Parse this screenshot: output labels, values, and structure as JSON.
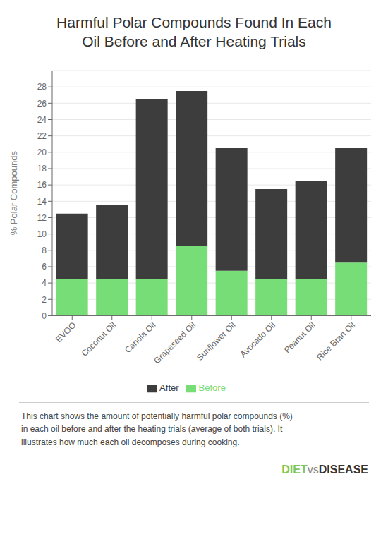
{
  "chart_data": {
    "type": "bar",
    "title": "Harmful Polar Compounds Found In Each\nOil Before and After Heating Trials",
    "categories": [
      "EVOO",
      "Coconut Oil",
      "Canola Oil",
      "Grapeseed Oil",
      "Sunflower Oil",
      "Avocado Oil",
      "Peanut Oil",
      "Rice Bran Oil"
    ],
    "series": [
      {
        "name": "Before",
        "color": "#77dd77",
        "values": [
          4.5,
          4.5,
          4.5,
          8.5,
          5.5,
          4.5,
          4.5,
          6.5
        ]
      },
      {
        "name": "After",
        "color": "#3d3d3d",
        "values": [
          8,
          9,
          22,
          19,
          15,
          11,
          12,
          14
        ]
      }
    ],
    "stacked": true,
    "ylabel": "% Polar Compounds",
    "ylim": [
      0,
      30
    ],
    "yticks": [
      0,
      2,
      4,
      6,
      8,
      10,
      12,
      14,
      16,
      18,
      20,
      22,
      24,
      26,
      28
    ],
    "grid": true,
    "legend": "bottom",
    "annotations": [
      "This chart shows the amount of potentially harmful polar compounds (%)\nin each oil before and after the heating trials (average of both trials). It\nillustrates how much each oil decomposes during cooking.",
      "DIET",
      "vs",
      "DISEASE"
    ]
  }
}
